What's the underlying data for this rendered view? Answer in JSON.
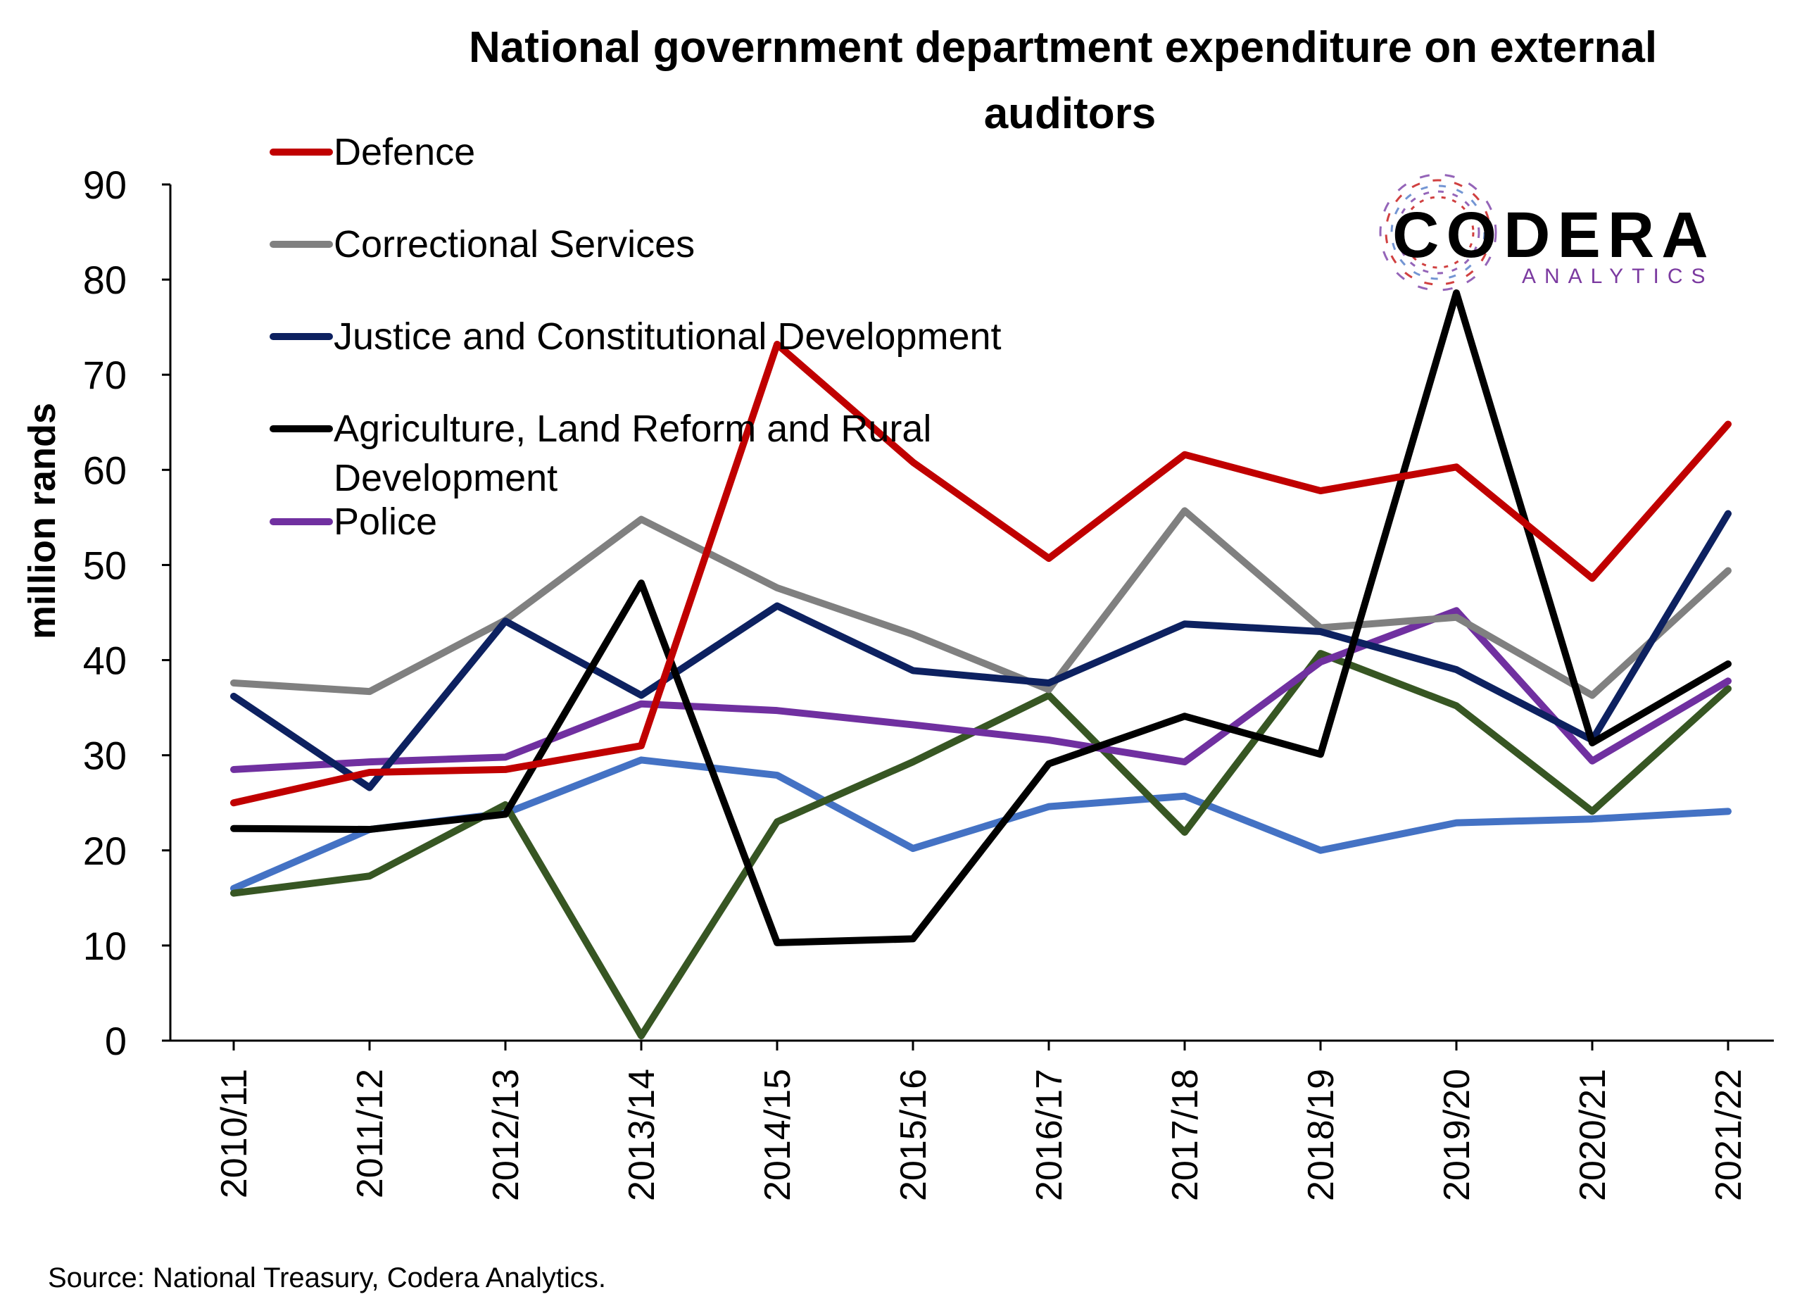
{
  "chart_data": {
    "type": "line",
    "title": [
      "National government department expenditure on external",
      "auditors"
    ],
    "ylabel": "million rands",
    "xlabel": "",
    "ylim": [
      0,
      90
    ],
    "yticks": [
      "0",
      "10",
      "20",
      "30",
      "40",
      "50",
      "60",
      "70",
      "80",
      "90"
    ],
    "categories": [
      "2010/11",
      "2011/12",
      "2012/13",
      "2013/14",
      "2014/15",
      "2015/16",
      "2016/17",
      "2017/18",
      "2018/19",
      "2019/20",
      "2020/21",
      "2021/22"
    ],
    "legend_position": "top-left",
    "series": [
      {
        "name": "Defence",
        "color": "#c00000",
        "in_legend": true,
        "values": [
          25.0,
          28.2,
          28.5,
          31.0,
          73.2,
          60.8,
          50.7,
          61.6,
          57.8,
          60.3,
          48.6,
          64.8
        ]
      },
      {
        "name": "Correctional Services",
        "color": "#808080",
        "in_legend": true,
        "values": [
          37.6,
          36.7,
          44.2,
          54.8,
          47.6,
          42.7,
          36.9,
          55.7,
          43.4,
          44.5,
          36.3,
          49.4
        ]
      },
      {
        "name": "Justice and Constitutional Development",
        "color": "#0d2160",
        "in_legend": true,
        "values": [
          36.2,
          26.6,
          44.1,
          36.3,
          45.7,
          38.9,
          37.6,
          43.8,
          43.0,
          39.0,
          31.6,
          55.4
        ]
      },
      {
        "name": "Agriculture, Land Reform and Rural Development",
        "color": "#000000",
        "in_legend": true,
        "values": [
          22.3,
          22.2,
          23.8,
          48.1,
          10.3,
          10.7,
          29.1,
          34.1,
          30.1,
          78.6,
          31.3,
          39.6
        ]
      },
      {
        "name": "Police",
        "color": "#7030a0",
        "in_legend": true,
        "values": [
          28.5,
          29.3,
          29.8,
          35.4,
          34.7,
          33.2,
          31.6,
          29.3,
          39.8,
          45.2,
          29.4,
          37.8
        ]
      },
      {
        "name": "",
        "color": "#375623",
        "in_legend": false,
        "values": [
          15.5,
          17.3,
          24.8,
          0.5,
          23.0,
          29.3,
          36.3,
          21.9,
          40.7,
          35.2,
          24.1,
          37.0
        ]
      },
      {
        "name": "",
        "color": "#4472c4",
        "in_legend": false,
        "values": [
          16.0,
          22.2,
          23.9,
          29.5,
          27.9,
          20.2,
          24.6,
          25.7,
          20.0,
          22.9,
          23.3,
          24.1
        ]
      }
    ]
  },
  "source": "Source: National Treasury, Codera Analytics.",
  "logo": {
    "name": "CODERA",
    "tagline": "ANALYTICS",
    "colors": [
      "#c00000",
      "#7030a0",
      "#4472c4"
    ]
  }
}
